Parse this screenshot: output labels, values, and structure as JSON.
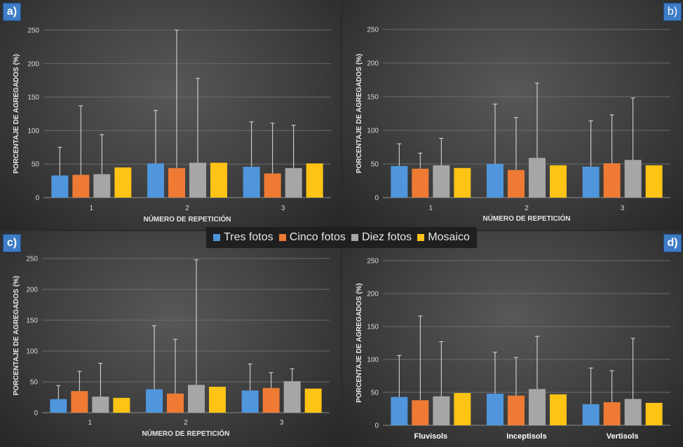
{
  "legend": {
    "entries": [
      {
        "label": "Tres fotos",
        "color": "#4f96dc"
      },
      {
        "label": "Cinco fotos",
        "color": "#ee7a34"
      },
      {
        "label": "Diez fotos",
        "color": "#a6a6a6"
      },
      {
        "label": "Mosaico",
        "color": "#fdc315"
      }
    ]
  },
  "chart_data": [
    {
      "id": "a",
      "panel_label": "a)",
      "type": "bar",
      "ylabel": "PORCENTAJE DE AGREGADOS (%)",
      "xlabel": "NÚMERO DE REPETICIÓN",
      "ylim": [
        0,
        250
      ],
      "yticks": [
        0,
        50,
        100,
        150,
        200,
        250
      ],
      "categories": [
        "1",
        "2",
        "3"
      ],
      "series": [
        {
          "name": "Tres fotos",
          "values": [
            33,
            51,
            46
          ],
          "error_top": [
            75,
            130,
            113
          ]
        },
        {
          "name": "Cinco fotos",
          "values": [
            34,
            44,
            36
          ],
          "error_top": [
            137,
            250,
            111
          ]
        },
        {
          "name": "Diez fotos",
          "values": [
            35,
            52,
            44
          ],
          "error_top": [
            94,
            178,
            108
          ]
        },
        {
          "name": "Mosaico",
          "values": [
            45,
            52,
            51
          ],
          "error_top": [
            null,
            null,
            null
          ]
        }
      ]
    },
    {
      "id": "b",
      "panel_label": "b)",
      "type": "bar",
      "ylabel": "PORCENTAJE DE AGREGADOS (%)",
      "xlabel": "NÚMERO DE REPETICIÓN",
      "ylim": [
        0,
        250
      ],
      "yticks": [
        0,
        50,
        100,
        150,
        200,
        250
      ],
      "categories": [
        "1",
        "2",
        "3"
      ],
      "series": [
        {
          "name": "Tres fotos",
          "values": [
            47,
            50,
            46
          ],
          "error_top": [
            80,
            139,
            114
          ]
        },
        {
          "name": "Cinco fotos",
          "values": [
            43,
            41,
            51
          ],
          "error_top": [
            66,
            119,
            123
          ]
        },
        {
          "name": "Diez fotos",
          "values": [
            48,
            59,
            56
          ],
          "error_top": [
            88,
            170,
            148
          ]
        },
        {
          "name": "Mosaico",
          "values": [
            44,
            48,
            48
          ],
          "error_top": [
            null,
            null,
            null
          ]
        }
      ]
    },
    {
      "id": "c",
      "panel_label": "c)",
      "type": "bar",
      "ylabel": "PORCENTAJE DE AGREGADOS (%)",
      "xlabel": "NÚMERO DE REPETICIÓN",
      "ylim": [
        0,
        250
      ],
      "yticks": [
        0,
        50,
        100,
        150,
        200,
        250
      ],
      "categories": [
        "1",
        "2",
        "3"
      ],
      "series": [
        {
          "name": "Tres fotos",
          "values": [
            22,
            38,
            36
          ],
          "error_top": [
            44,
            141,
            79
          ]
        },
        {
          "name": "Cinco fotos",
          "values": [
            35,
            31,
            40
          ],
          "error_top": [
            67,
            119,
            65
          ]
        },
        {
          "name": "Diez fotos",
          "values": [
            26,
            45,
            51
          ],
          "error_top": [
            80,
            248,
            71
          ]
        },
        {
          "name": "Mosaico",
          "values": [
            24,
            42,
            39
          ],
          "error_top": [
            null,
            null,
            null
          ]
        }
      ]
    },
    {
      "id": "d",
      "panel_label": "d)",
      "type": "bar",
      "ylabel": "PORCENTAJE DE AGREGADOS (%)",
      "xlabel": "",
      "ylim": [
        0,
        250
      ],
      "yticks": [
        0,
        50,
        100,
        150,
        200,
        250
      ],
      "categories": [
        "Fluvisols",
        "Inceptisols",
        "Vertisols"
      ],
      "series": [
        {
          "name": "Tres fotos",
          "values": [
            43,
            48,
            32
          ],
          "error_top": [
            106,
            111,
            87
          ]
        },
        {
          "name": "Cinco fotos",
          "values": [
            38,
            45,
            35
          ],
          "error_top": [
            166,
            103,
            83
          ]
        },
        {
          "name": "Diez fotos",
          "values": [
            44,
            55,
            40
          ],
          "error_top": [
            127,
            135,
            132
          ]
        },
        {
          "name": "Mosaico",
          "values": [
            49,
            47,
            34
          ],
          "error_top": [
            null,
            null,
            null
          ]
        }
      ]
    }
  ]
}
